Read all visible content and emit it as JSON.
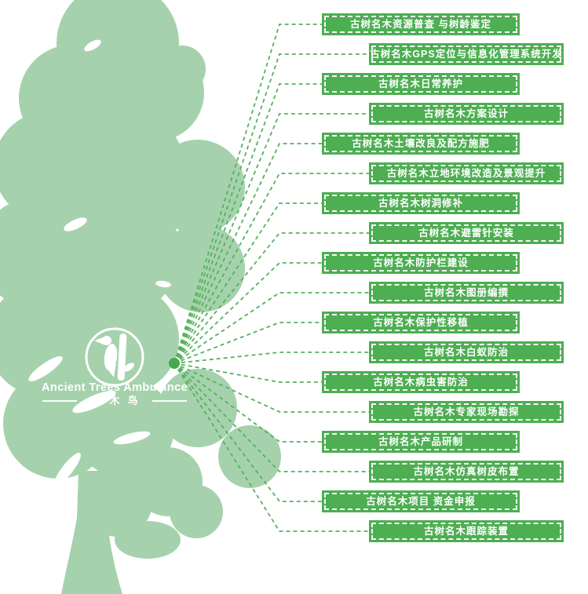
{
  "poster": {
    "logo": {
      "title": "Ancient Trees Ambulance",
      "subtitle": "啄木鸟"
    },
    "colors": {
      "tree": "#a5d2ac",
      "box": "#4dae52",
      "connector": "#55b25c",
      "hub": "#46a94f",
      "label_text": "#ffffff"
    },
    "services": [
      {
        "label": "古树名木资源普查 与树龄鉴定",
        "side": "left"
      },
      {
        "label": "古树名木GPS定位与信息化管理系统开发",
        "side": "right"
      },
      {
        "label": "古树名木日常养护",
        "side": "left"
      },
      {
        "label": "古树名木方案设计",
        "side": "right"
      },
      {
        "label": "古树名木土壤改良及配方施肥",
        "side": "left"
      },
      {
        "label": "古树名木立地环境改造及景观提升",
        "side": "right"
      },
      {
        "label": "古树名木树洞修补",
        "side": "left"
      },
      {
        "label": "古树名木避雷针安装",
        "side": "right"
      },
      {
        "label": "古树名木防护栏建设",
        "side": "left"
      },
      {
        "label": "古树名木图册编撰",
        "side": "right"
      },
      {
        "label": "古树名木保护性移植",
        "side": "left"
      },
      {
        "label": "古树名木白蚁防治",
        "side": "right"
      },
      {
        "label": "古树名木病虫害防治",
        "side": "left"
      },
      {
        "label": "古树名木专家现场勘探",
        "side": "right"
      },
      {
        "label": "古树名木产品研制",
        "side": "left"
      },
      {
        "label": "古树名木仿真树皮布置",
        "side": "right"
      },
      {
        "label": "古树名木项目 资金申报",
        "side": "left"
      },
      {
        "label": "古树名木跟踪装置",
        "side": "right"
      }
    ]
  }
}
